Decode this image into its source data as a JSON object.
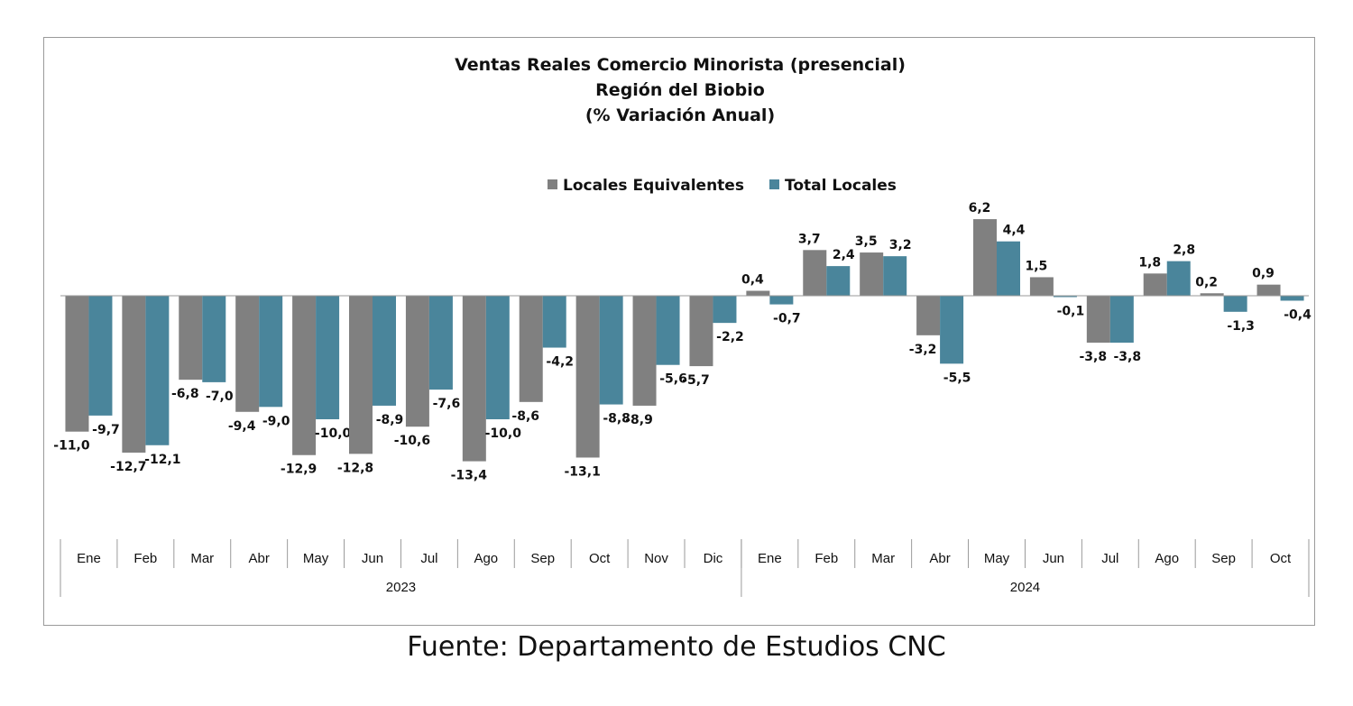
{
  "source_note": "Fuente: Departamento de Estudios CNC",
  "chart_data": {
    "type": "bar",
    "title": [
      "Ventas Reales Comercio Minorista (presencial)",
      "Región del Biobio",
      "(% Variación Anual)"
    ],
    "legend_position": "top",
    "grid": false,
    "ylim": [
      -20,
      10
    ],
    "categories": [
      "Ene",
      "Feb",
      "Mar",
      "Abr",
      "May",
      "Jun",
      "Jul",
      "Ago",
      "Sep",
      "Oct",
      "Nov",
      "Dic",
      "Ene",
      "Feb",
      "Mar",
      "Abr",
      "May",
      "Jun",
      "Jul",
      "Ago",
      "Sep",
      "Oct"
    ],
    "groups": [
      {
        "label": "2023",
        "start": 0,
        "end": 11
      },
      {
        "label": "2024",
        "start": 12,
        "end": 21
      }
    ],
    "series": [
      {
        "name": "Locales Equivalentes",
        "color": "#808080",
        "values": [
          -11.0,
          -12.7,
          -6.8,
          -9.4,
          -12.9,
          -12.8,
          -10.6,
          -13.4,
          -8.6,
          -13.1,
          -8.9,
          -5.7,
          0.4,
          3.7,
          3.5,
          -3.2,
          6.2,
          1.5,
          -3.8,
          1.8,
          0.2,
          0.9
        ],
        "labels": [
          "-11,0",
          "-12,7",
          "-6,8",
          "-9,4",
          "-12,9",
          "-12,8",
          "-10,6",
          "-13,4",
          "-8,6",
          "-13,1",
          "-8,9",
          "-5,7",
          "0,4",
          "3,7",
          "3,5",
          "-3,2",
          "6,2",
          "1,5",
          "-3,8",
          "1,8",
          "0,2",
          "0,9"
        ]
      },
      {
        "name": "Total Locales",
        "color": "#4a859b",
        "values": [
          -9.7,
          -12.1,
          -7.0,
          -9.0,
          -10.0,
          -8.9,
          -7.6,
          -10.0,
          -4.2,
          -8.8,
          -5.6,
          -2.2,
          -0.7,
          2.4,
          3.2,
          -5.5,
          4.4,
          -0.1,
          -3.8,
          2.8,
          -1.3,
          -0.4
        ],
        "labels": [
          "-9,7",
          "-12,1",
          "-7,0",
          "-9,0",
          "-10,0",
          "-8,9",
          "-7,6",
          "-10,0",
          "-4,2",
          "-8,8",
          "-5,6",
          "-2,2",
          "-0,7",
          "2,4",
          "3,2",
          "-5,5",
          "4,4",
          "-0,1",
          "-3,8",
          "2,8",
          "-1,3",
          "-0,4"
        ]
      }
    ]
  }
}
